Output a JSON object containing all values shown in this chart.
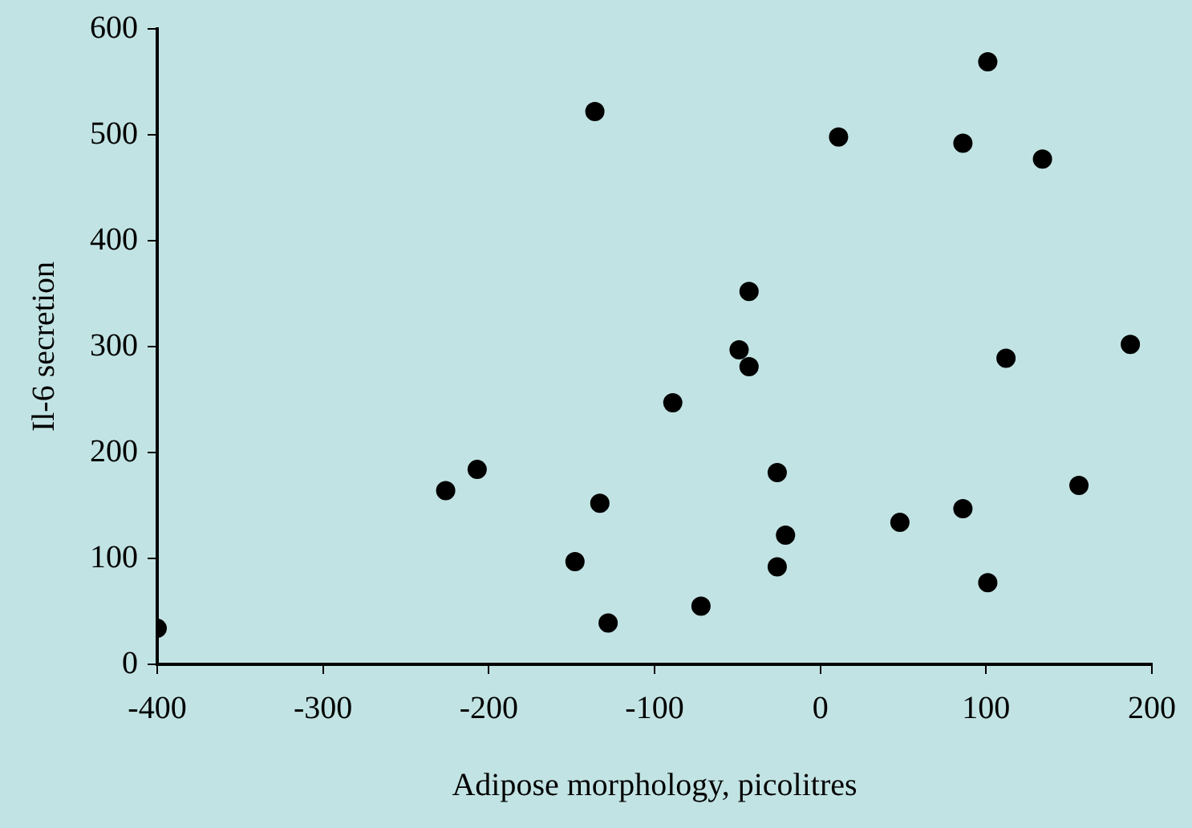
{
  "chart_data": {
    "type": "scatter",
    "xlabel": "Adipose morphology, picolitres",
    "ylabel": "Il-6 secretion",
    "x": [
      -400,
      -226,
      -207,
      -136,
      -133,
      -148,
      -128,
      -89,
      -72,
      -49,
      -43,
      -43,
      -26,
      -26,
      -21,
      11,
      48,
      86,
      86,
      101,
      101,
      112,
      134,
      156,
      187
    ],
    "series": [
      {
        "color": "#000000",
        "values": [
          34,
          164,
          184,
          522,
          152,
          97,
          39,
          247,
          55,
          297,
          352,
          281,
          181,
          92,
          122,
          498,
          134,
          147,
          492,
          569,
          77,
          289,
          477,
          169,
          302
        ]
      }
    ],
    "xlim": [
      -400,
      200
    ],
    "xticks": [
      -400,
      -300,
      -200,
      -100,
      0,
      100,
      200
    ],
    "ylim": [
      0,
      600
    ],
    "yticks": [
      0,
      100,
      200,
      300,
      400,
      500,
      600
    ],
    "grid": false,
    "legend": false,
    "marker": "circle"
  }
}
